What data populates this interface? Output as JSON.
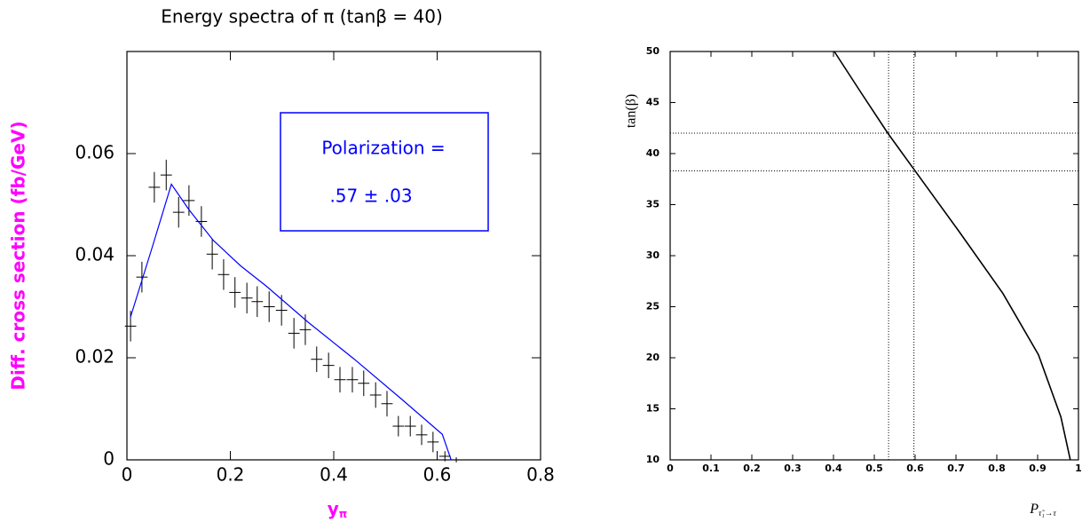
{
  "chart_data": [
    {
      "type": "errorbar",
      "title": "Energy spectra of π  (tanβ = 40)",
      "ylabel": "Diff. cross section (fb/GeV)",
      "xlabel": "y",
      "xlabel_sub": "π",
      "label_color": "#ff00ff",
      "annotations": [
        "Polarization =",
        ".57 ± .03"
      ],
      "annotation_color": "#0000ff",
      "xlim": [
        0,
        0.8
      ],
      "ylim": [
        0,
        0.08
      ],
      "xticks": [
        0,
        0.2,
        0.4,
        0.6,
        0.8
      ],
      "yticks": [
        0,
        0.02,
        0.04,
        0.06
      ],
      "x_error": 0.011,
      "series": [
        {
          "color": "#000000",
          "x": [
            0.007,
            0.029,
            0.053,
            0.076,
            0.1,
            0.12,
            0.144,
            0.165,
            0.187,
            0.209,
            0.232,
            0.252,
            0.275,
            0.299,
            0.323,
            0.345,
            0.367,
            0.39,
            0.412,
            0.436,
            0.458,
            0.481,
            0.503,
            0.525,
            0.548,
            0.57,
            0.592,
            0.615,
            0.637
          ],
          "values": [
            0.0262,
            0.0358,
            0.0534,
            0.0558,
            0.0485,
            0.0508,
            0.0467,
            0.0403,
            0.0363,
            0.0328,
            0.0317,
            0.031,
            0.03,
            0.0293,
            0.0248,
            0.0255,
            0.0197,
            0.0185,
            0.0157,
            0.0157,
            0.015,
            0.0127,
            0.011,
            0.0066,
            0.0066,
            0.0049,
            0.0035,
            0.0007,
            0.0
          ],
          "errors": [
            0.003,
            0.003,
            0.003,
            0.003,
            0.003,
            0.003,
            0.003,
            0.003,
            0.003,
            0.003,
            0.003,
            0.003,
            0.003,
            0.003,
            0.003,
            0.003,
            0.0025,
            0.0025,
            0.0025,
            0.0025,
            0.0025,
            0.0025,
            0.0025,
            0.002,
            0.002,
            0.002,
            0.002,
            0.001,
            0.0005
          ]
        },
        {
          "color": "#0000ff",
          "x": [
            0.007,
            0.05,
            0.086,
            0.12,
            0.167,
            0.22,
            0.27,
            0.35,
            0.44,
            0.53,
            0.61,
            0.627
          ],
          "values": [
            0.028,
            0.042,
            0.054,
            0.049,
            0.043,
            0.038,
            0.034,
            0.027,
            0.0197,
            0.012,
            0.005,
            0.0
          ]
        }
      ]
    },
    {
      "type": "line",
      "ylabel": "tan(β)",
      "xlabel": "P",
      "xlabel_sub": "τ̃₁→τ",
      "xlim": [
        0,
        1
      ],
      "ylim": [
        10,
        50
      ],
      "xticks": [
        0,
        0.1,
        0.2,
        0.3,
        0.4,
        0.5,
        0.6,
        0.7,
        0.8,
        0.9,
        1
      ],
      "yticks": [
        10,
        15,
        20,
        25,
        30,
        35,
        40,
        45,
        50
      ],
      "vlines": [
        0.535,
        0.597
      ],
      "hlines": [
        42,
        38.3
      ],
      "series": [
        {
          "color": "#000000",
          "x": [
            0.402,
            0.467,
            0.533,
            0.6,
            0.707,
            0.815,
            0.902,
            0.957,
            0.98
          ],
          "values": [
            50,
            46,
            42,
            38.3,
            32.4,
            26.3,
            20.3,
            14.2,
            10
          ]
        }
      ]
    }
  ]
}
